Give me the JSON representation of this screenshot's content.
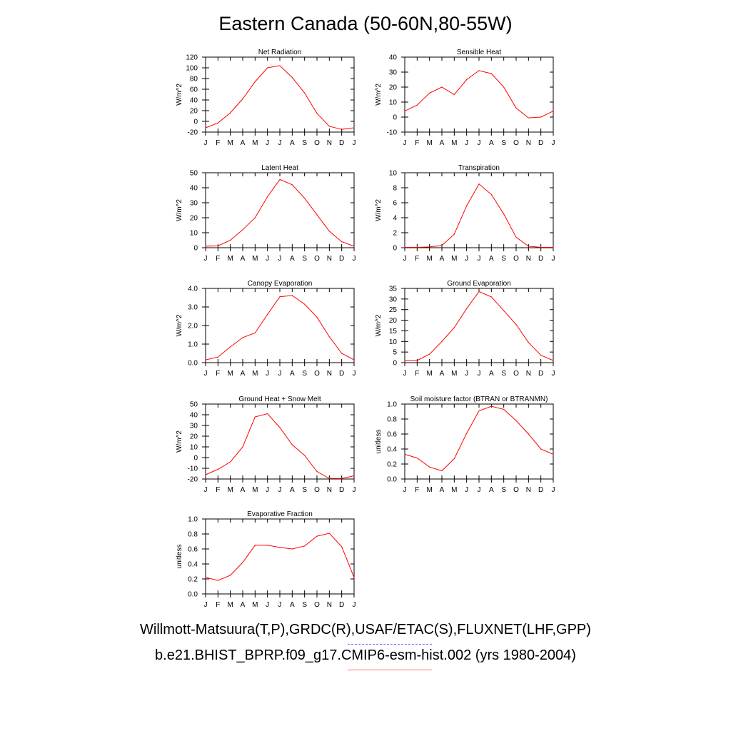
{
  "title": "Eastern Canada (50-60N,80-55W)",
  "legend": {
    "observations_label": "Willmott-Matsuura(T,P),GRDC(R),USAF/ETAC(S),FLUXNET(LHF,GPP)",
    "model_label": "b.e21.BHIST_BPRP.f09_g17.CMIP6-esm-hist.002 (yrs 1980-2004)",
    "observations_color": "#6b6bff",
    "model_color": "#ff6b6b"
  },
  "colors": {
    "series": "#ff0000",
    "axis": "#000000"
  },
  "chart_data": [
    {
      "type": "line",
      "title": "Net Radiation",
      "ylabel": "W/m^2",
      "categories": [
        "J",
        "F",
        "M",
        "A",
        "M",
        "J",
        "J",
        "A",
        "S",
        "O",
        "N",
        "D",
        "J"
      ],
      "ylim": [
        -20,
        120
      ],
      "yticks": [
        "120",
        "100",
        "80",
        "60",
        "40",
        "20",
        "0",
        "-20"
      ],
      "yticks_values": [
        120,
        100,
        80,
        60,
        40,
        20,
        0,
        -20
      ],
      "values": [
        -12,
        -3,
        16,
        42,
        74,
        100,
        104,
        82,
        53,
        15,
        -9,
        -15,
        -12
      ]
    },
    {
      "type": "line",
      "title": "Sensible Heat",
      "ylabel": "W/m^2",
      "categories": [
        "J",
        "F",
        "M",
        "A",
        "M",
        "J",
        "J",
        "A",
        "S",
        "O",
        "N",
        "D",
        "J"
      ],
      "ylim": [
        -10,
        40
      ],
      "yticks": [
        "40",
        "30",
        "20",
        "10",
        "0",
        "-10"
      ],
      "yticks_values": [
        40,
        30,
        20,
        10,
        0,
        -10
      ],
      "values": [
        4,
        8,
        16,
        20,
        15,
        25,
        31,
        29,
        20,
        6,
        -0.5,
        0,
        4
      ]
    },
    {
      "type": "line",
      "title": "Latent Heat",
      "ylabel": "W/m^2",
      "categories": [
        "J",
        "F",
        "M",
        "A",
        "M",
        "J",
        "J",
        "A",
        "S",
        "O",
        "N",
        "D",
        "J"
      ],
      "ylim": [
        0,
        50
      ],
      "yticks": [
        "50",
        "40",
        "30",
        "20",
        "10",
        "0"
      ],
      "yticks_values": [
        50,
        40,
        30,
        20,
        10,
        0
      ],
      "values": [
        1,
        1.2,
        5,
        12,
        20,
        34,
        45.5,
        42,
        33,
        22,
        11,
        4,
        1
      ]
    },
    {
      "type": "line",
      "title": "Transpiration",
      "ylabel": "W/m^2",
      "categories": [
        "J",
        "F",
        "M",
        "A",
        "M",
        "J",
        "J",
        "A",
        "S",
        "O",
        "N",
        "D",
        "J"
      ],
      "ylim": [
        0,
        10
      ],
      "yticks": [
        "10",
        "8",
        "6",
        "4",
        "2",
        "0"
      ],
      "yticks_values": [
        10,
        8,
        6,
        4,
        2,
        0
      ],
      "values": [
        0.05,
        0.05,
        0.1,
        0.3,
        1.8,
        5.6,
        8.5,
        7.1,
        4.5,
        1.4,
        0.2,
        0.05,
        0.05
      ]
    },
    {
      "type": "line",
      "title": "Canopy Evaporation",
      "ylabel": "W/m^2",
      "categories": [
        "J",
        "F",
        "M",
        "A",
        "M",
        "J",
        "J",
        "A",
        "S",
        "O",
        "N",
        "D",
        "J"
      ],
      "ylim": [
        0,
        4
      ],
      "yticks": [
        "4.0",
        "3.0",
        "2.0",
        "1.0",
        "0.0"
      ],
      "yticks_values": [
        4,
        3,
        2,
        1,
        0
      ],
      "values": [
        0.15,
        0.3,
        0.85,
        1.35,
        1.6,
        2.6,
        3.55,
        3.62,
        3.15,
        2.45,
        1.4,
        0.5,
        0.15
      ]
    },
    {
      "type": "line",
      "title": "Ground Evaporation",
      "ylabel": "W/m^2",
      "categories": [
        "J",
        "F",
        "M",
        "A",
        "M",
        "J",
        "J",
        "A",
        "S",
        "O",
        "N",
        "D",
        "J"
      ],
      "ylim": [
        0,
        35
      ],
      "yticks": [
        "35",
        "30",
        "25",
        "20",
        "15",
        "10",
        "5",
        "0"
      ],
      "yticks_values": [
        35,
        30,
        25,
        20,
        15,
        10,
        5,
        0
      ],
      "values": [
        1,
        1,
        4,
        10,
        16.5,
        25.5,
        33.5,
        31,
        24.5,
        18,
        9.5,
        3.5,
        1
      ]
    },
    {
      "type": "line",
      "title": "Ground Heat + Snow Melt",
      "ylabel": "W/m^2",
      "categories": [
        "J",
        "F",
        "M",
        "A",
        "M",
        "J",
        "J",
        "A",
        "S",
        "O",
        "N",
        "D",
        "J"
      ],
      "ylim": [
        -20,
        50
      ],
      "yticks": [
        "50",
        "40",
        "30",
        "20",
        "10",
        "0",
        "-10",
        "-20"
      ],
      "yticks_values": [
        50,
        40,
        30,
        20,
        10,
        0,
        -10,
        -20
      ],
      "values": [
        -16,
        -11,
        -4,
        10,
        38,
        41,
        28,
        12,
        2,
        -13,
        -19.5,
        -19.5,
        -17
      ]
    },
    {
      "type": "line",
      "title": "Soil moisture factor (BTRAN or BTRANMN)",
      "ylabel": "unitless",
      "categories": [
        "J",
        "F",
        "M",
        "A",
        "M",
        "J",
        "J",
        "A",
        "S",
        "O",
        "N",
        "D",
        "J"
      ],
      "ylim": [
        0,
        1
      ],
      "yticks": [
        "1.0",
        "0.8",
        "0.6",
        "0.4",
        "0.2",
        "0.0"
      ],
      "yticks_values": [
        1,
        0.8,
        0.6,
        0.4,
        0.2,
        0
      ],
      "values": [
        0.33,
        0.28,
        0.16,
        0.11,
        0.27,
        0.61,
        0.91,
        0.97,
        0.93,
        0.78,
        0.6,
        0.4,
        0.33
      ]
    },
    {
      "type": "line",
      "title": "Evaporative Fraction",
      "ylabel": "unitless",
      "categories": [
        "J",
        "F",
        "M",
        "A",
        "M",
        "J",
        "J",
        "A",
        "S",
        "O",
        "N",
        "D",
        "J"
      ],
      "ylim": [
        0,
        1
      ],
      "yticks": [
        "1.0",
        "0.8",
        "0.6",
        "0.4",
        "0.2",
        "0.0"
      ],
      "yticks_values": [
        1,
        0.8,
        0.6,
        0.4,
        0.2,
        0
      ],
      "values": [
        0.22,
        0.18,
        0.25,
        0.42,
        0.65,
        0.65,
        0.62,
        0.6,
        0.64,
        0.77,
        0.81,
        0.63,
        0.22
      ]
    }
  ]
}
